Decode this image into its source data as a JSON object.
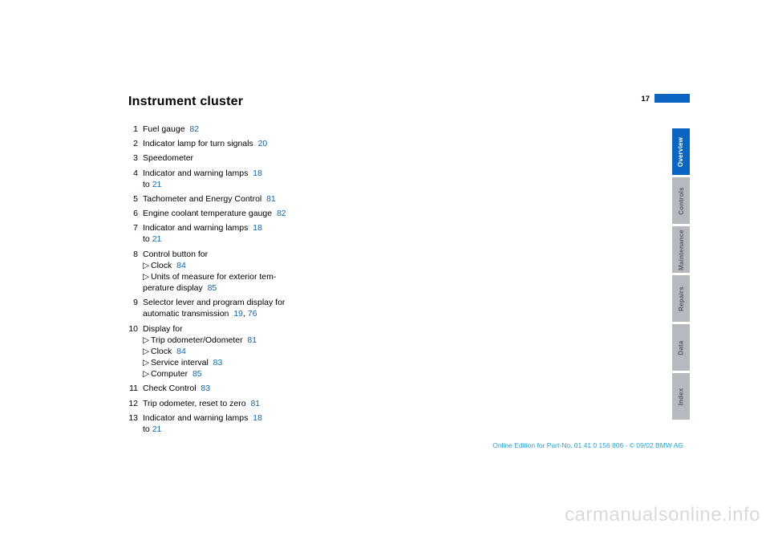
{
  "title": "Instrument cluster",
  "pageNumber": "17",
  "tabs": [
    {
      "label": "Overview",
      "active": true
    },
    {
      "label": "Controls",
      "active": false
    },
    {
      "label": "Maintenance",
      "active": false
    },
    {
      "label": "Repairs",
      "active": false
    },
    {
      "label": "Data",
      "active": false
    },
    {
      "label": "Index",
      "active": false
    }
  ],
  "items": {
    "n1": {
      "num": "1",
      "text_a": "Fuel gauge",
      "ref_a": "82"
    },
    "n2": {
      "num": "2",
      "text_a": "Indicator lamp for turn signals",
      "ref_a": "20"
    },
    "n3": {
      "num": "3",
      "text_a": "Speedometer"
    },
    "n4": {
      "num": "4",
      "text_a": "Indicator and warning lamps",
      "ref_a": "18",
      "text_b": " to ",
      "ref_b": "21"
    },
    "n5": {
      "num": "5",
      "text_a": "Tachometer and Energy Control",
      "ref_a": "81"
    },
    "n6": {
      "num": "6",
      "text_a": "Engine coolant temperature gauge",
      "ref_a": "82"
    },
    "n7": {
      "num": "7",
      "text_a": "Indicator and warning lamps",
      "ref_a": "18",
      "text_b": "to ",
      "ref_b": "21"
    },
    "n8": {
      "num": "8",
      "text_a": "Control button for",
      "subs": [
        {
          "text": "Clock",
          "ref": "84"
        },
        {
          "text": "Units of measure for exterior tem-perature display",
          "ref": "85"
        }
      ]
    },
    "n9": {
      "num": "9",
      "text_a": "Selector lever and program display for automatic transmission",
      "ref_a": "19",
      "sep": ", ",
      "ref_b": "76"
    },
    "n10": {
      "num": "10",
      "text_a": "Display for",
      "subs": [
        {
          "text": "Trip odometer/Odometer",
          "ref": "81"
        },
        {
          "text": "Clock",
          "ref": "84"
        },
        {
          "text": "Service interval",
          "ref": "83"
        },
        {
          "text": "Computer",
          "ref": "85"
        }
      ]
    },
    "n11": {
      "num": "11",
      "text_a": "Check Control",
      "ref_a": "83"
    },
    "n12": {
      "num": "12",
      "text_a": "Trip odometer, reset to zero",
      "ref_a": "81"
    },
    "n13": {
      "num": "13",
      "text_a": "Indicator and warning lamps",
      "ref_a": "18",
      "text_b": "to ",
      "ref_b": "21"
    }
  },
  "footer": "Online Edition for Part-No. 01 41 0 156 806 - © 09/02 BMW AG",
  "watermark": "carmanualsonline.info",
  "triangle": "▷"
}
